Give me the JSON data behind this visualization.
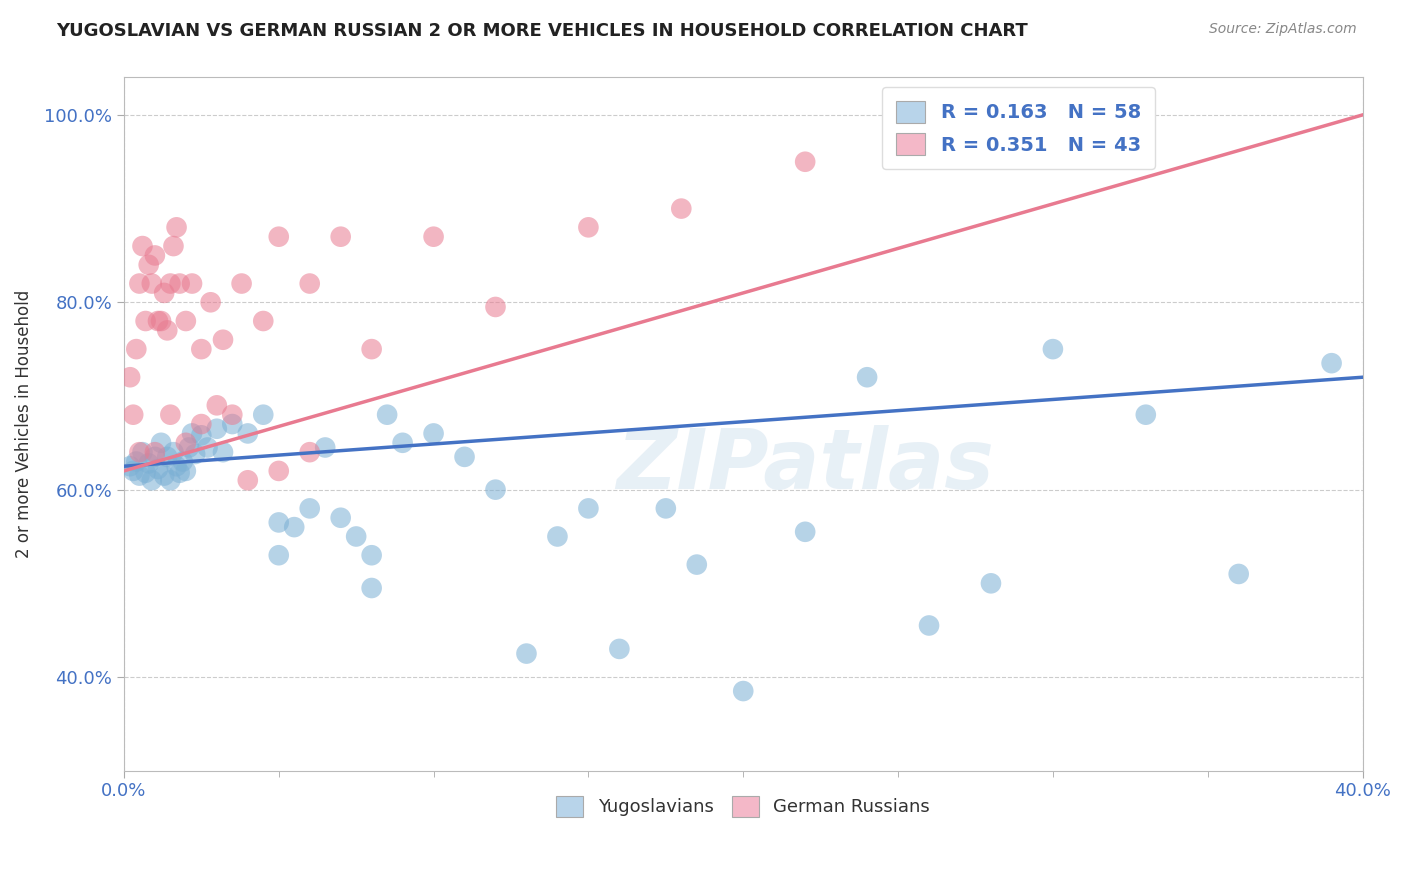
{
  "title": "YUGOSLAVIAN VS GERMAN RUSSIAN 2 OR MORE VEHICLES IN HOUSEHOLD CORRELATION CHART",
  "source_text": "Source: ZipAtlas.com",
  "ylabel": "2 or more Vehicles in Household",
  "xmin": 0.0,
  "xmax": 0.4,
  "ymin": 0.3,
  "ymax": 1.04,
  "series1_label": "Yugoslavians",
  "series2_label": "German Russians",
  "series1_color": "#7bafd4",
  "series2_color": "#e87a90",
  "series1_patch_color": "#b8d4ea",
  "series2_patch_color": "#f4b8c8",
  "series1_R": 0.163,
  "series1_N": 58,
  "series2_R": 0.351,
  "series2_N": 43,
  "watermark": "ZIPatlas",
  "grid_color": "#cccccc",
  "background_color": "#ffffff",
  "tick_color": "#4472c4",
  "legend_text_color": "#4472c4",
  "yug_x": [
    0.002,
    0.003,
    0.004,
    0.005,
    0.006,
    0.007,
    0.008,
    0.009,
    0.01,
    0.011,
    0.012,
    0.013,
    0.014,
    0.015,
    0.016,
    0.017,
    0.018,
    0.019,
    0.02,
    0.021,
    0.022,
    0.023,
    0.025,
    0.027,
    0.03,
    0.032,
    0.035,
    0.04,
    0.045,
    0.05,
    0.055,
    0.06,
    0.065,
    0.07,
    0.075,
    0.08,
    0.085,
    0.09,
    0.1,
    0.11,
    0.12,
    0.13,
    0.14,
    0.15,
    0.16,
    0.175,
    0.185,
    0.2,
    0.22,
    0.24,
    0.26,
    0.28,
    0.3,
    0.33,
    0.36,
    0.39,
    0.05,
    0.08
  ],
  "yug_y": [
    0.625,
    0.62,
    0.63,
    0.615,
    0.64,
    0.618,
    0.628,
    0.61,
    0.635,
    0.622,
    0.65,
    0.615,
    0.635,
    0.61,
    0.64,
    0.625,
    0.618,
    0.63,
    0.62,
    0.645,
    0.66,
    0.638,
    0.658,
    0.645,
    0.665,
    0.64,
    0.67,
    0.66,
    0.68,
    0.565,
    0.56,
    0.58,
    0.645,
    0.57,
    0.55,
    0.495,
    0.68,
    0.65,
    0.66,
    0.635,
    0.6,
    0.425,
    0.55,
    0.58,
    0.43,
    0.58,
    0.52,
    0.385,
    0.555,
    0.72,
    0.455,
    0.5,
    0.75,
    0.68,
    0.51,
    0.735,
    0.53,
    0.53
  ],
  "ger_x": [
    0.002,
    0.003,
    0.004,
    0.005,
    0.006,
    0.007,
    0.008,
    0.009,
    0.01,
    0.011,
    0.012,
    0.013,
    0.014,
    0.015,
    0.016,
    0.017,
    0.018,
    0.02,
    0.022,
    0.025,
    0.028,
    0.032,
    0.038,
    0.045,
    0.05,
    0.06,
    0.07,
    0.08,
    0.1,
    0.12,
    0.15,
    0.18,
    0.22,
    0.005,
    0.01,
    0.015,
    0.02,
    0.025,
    0.03,
    0.035,
    0.04,
    0.05,
    0.06
  ],
  "ger_y": [
    0.72,
    0.68,
    0.75,
    0.82,
    0.86,
    0.78,
    0.84,
    0.82,
    0.85,
    0.78,
    0.78,
    0.81,
    0.77,
    0.82,
    0.86,
    0.88,
    0.82,
    0.78,
    0.82,
    0.75,
    0.8,
    0.76,
    0.82,
    0.78,
    0.87,
    0.82,
    0.87,
    0.75,
    0.87,
    0.795,
    0.88,
    0.9,
    0.95,
    0.64,
    0.64,
    0.68,
    0.65,
    0.67,
    0.69,
    0.68,
    0.61,
    0.62,
    0.64
  ],
  "trend_yug_x0": 0.0,
  "trend_yug_y0": 0.625,
  "trend_yug_x1": 0.4,
  "trend_yug_y1": 0.72,
  "trend_ger_x0": 0.0,
  "trend_ger_y0": 0.62,
  "trend_ger_x1": 0.4,
  "trend_ger_y1": 1.0
}
